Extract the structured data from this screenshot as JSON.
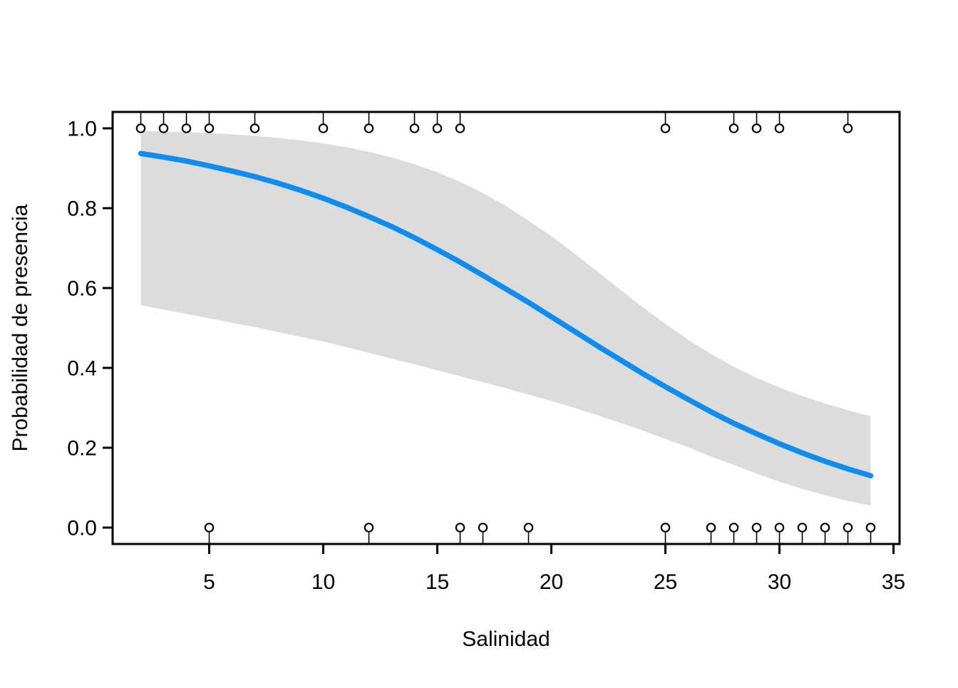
{
  "figure": {
    "background": "#ffffff"
  },
  "chart_data": {
    "type": "line",
    "title": "",
    "xlabel": "Salinidad",
    "ylabel": "Probabilidad de presencia",
    "xlim": [
      1.7,
      35.3
    ],
    "ylim": [
      0.0,
      1.0
    ],
    "grid": "off",
    "legend": "none",
    "x_ticks": [
      5,
      10,
      15,
      20,
      25,
      30,
      35
    ],
    "x_tick_labels": [
      "5",
      "10",
      "15",
      "20",
      "25",
      "30",
      "35"
    ],
    "y_ticks": [
      0.0,
      0.2,
      0.4,
      0.6,
      0.8,
      1.0
    ],
    "y_tick_labels": [
      "0.0",
      "0.2",
      "0.4",
      "0.6",
      "0.8",
      "1.0"
    ],
    "colors": {
      "curve": "#0D8DF2",
      "band": "#DCDCDC",
      "points_stroke": "#000000",
      "points_fill": "#FFFFFF",
      "axis": "#000000"
    },
    "observations": {
      "presence_y": 1.0,
      "presence_x": [
        2,
        3,
        4,
        5,
        7,
        10,
        12,
        14,
        15,
        16,
        25,
        28,
        29,
        30,
        33
      ],
      "absence_y": 0.0,
      "absence_x": [
        5,
        12,
        16,
        17,
        19,
        25,
        27,
        28,
        29,
        30,
        31,
        32,
        33,
        34
      ]
    },
    "fitted_curve": {
      "x": [
        2,
        3,
        4,
        5,
        6,
        7,
        8,
        9,
        10,
        11,
        12,
        13,
        14,
        15,
        16,
        17,
        18,
        19,
        20,
        21,
        22,
        23,
        24,
        25,
        26,
        27,
        28,
        29,
        30,
        31,
        32,
        33,
        34
      ],
      "y": [
        0.937,
        0.928,
        0.918,
        0.906,
        0.893,
        0.879,
        0.863,
        0.845,
        0.825,
        0.803,
        0.779,
        0.754,
        0.726,
        0.696,
        0.665,
        0.632,
        0.598,
        0.564,
        0.528,
        0.492,
        0.456,
        0.421,
        0.386,
        0.353,
        0.321,
        0.29,
        0.261,
        0.235,
        0.21,
        0.187,
        0.166,
        0.147,
        0.13
      ]
    },
    "confidence_band": {
      "x": [
        2,
        3,
        4,
        5,
        6,
        7,
        8,
        9,
        10,
        11,
        12,
        13,
        14,
        15,
        16,
        17,
        18,
        19,
        20,
        21,
        22,
        23,
        24,
        25,
        26,
        27,
        28,
        29,
        30,
        31,
        32,
        33,
        34
      ],
      "upper": [
        0.994,
        0.992,
        0.99,
        0.988,
        0.985,
        0.981,
        0.976,
        0.97,
        0.962,
        0.953,
        0.941,
        0.927,
        0.91,
        0.89,
        0.866,
        0.838,
        0.806,
        0.769,
        0.73,
        0.687,
        0.642,
        0.597,
        0.552,
        0.51,
        0.47,
        0.435,
        0.403,
        0.375,
        0.351,
        0.33,
        0.311,
        0.294,
        0.279
      ],
      "lower": [
        0.557,
        0.546,
        0.535,
        0.524,
        0.513,
        0.502,
        0.49,
        0.478,
        0.466,
        0.452,
        0.438,
        0.423,
        0.409,
        0.394,
        0.379,
        0.364,
        0.349,
        0.333,
        0.317,
        0.3,
        0.282,
        0.263,
        0.243,
        0.222,
        0.201,
        0.178,
        0.157,
        0.135,
        0.115,
        0.097,
        0.081,
        0.067,
        0.055
      ]
    }
  }
}
